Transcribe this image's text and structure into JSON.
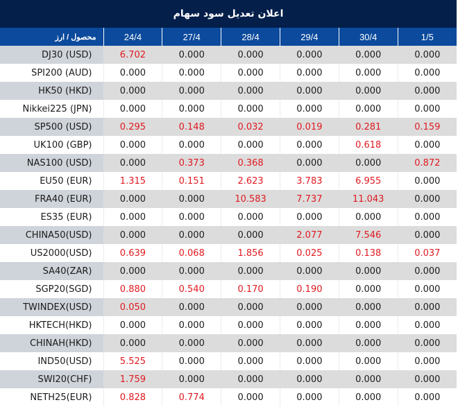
{
  "title": "اعلان تعدیل سود سهام",
  "columns": [
    "محصول / ارز",
    "24/4",
    "27/4",
    "28/4",
    "29/4",
    "30/4",
    "1/5"
  ],
  "colors": {
    "title_bg": "#031f4a",
    "header_bg": "#0b4a9c",
    "positive": "#e0191f",
    "zero": "#1a1a1a",
    "alt_row": "#dcdcdc",
    "alt_first_col": "#cfd4da"
  },
  "rows": [
    {
      "product": "DJ30 (USD)",
      "values": [
        "6.702",
        "0.000",
        "0.000",
        "0.000",
        "0.000",
        "0.000"
      ]
    },
    {
      "product": "SPI200 (AUD)",
      "values": [
        "0.000",
        "0.000",
        "0.000",
        "0.000",
        "0.000",
        "0.000"
      ]
    },
    {
      "product": "HK50 (HKD)",
      "values": [
        "0.000",
        "0.000",
        "0.000",
        "0.000",
        "0.000",
        "0.000"
      ]
    },
    {
      "product": "Nikkei225 (JPN)",
      "values": [
        "0.000",
        "0.000",
        "0.000",
        "0.000",
        "0.000",
        "0.000"
      ]
    },
    {
      "product": "SP500 (USD)",
      "values": [
        "0.295",
        "0.148",
        "0.032",
        "0.019",
        "0.281",
        "0.159"
      ]
    },
    {
      "product": "UK100 (GBP)",
      "values": [
        "0.000",
        "0.000",
        "0.000",
        "0.000",
        "0.618",
        "0.000"
      ]
    },
    {
      "product": "NAS100 (USD)",
      "values": [
        "0.000",
        "0.373",
        "0.368",
        "0.000",
        "0.000",
        "0.872"
      ]
    },
    {
      "product": "EU50 (EUR)",
      "values": [
        "1.315",
        "0.151",
        "2.623",
        "3.783",
        "6.955",
        "0.000"
      ]
    },
    {
      "product": "FRA40 (EUR)",
      "values": [
        "0.000",
        "0.000",
        "10.583",
        "7.737",
        "11.043",
        "0.000"
      ]
    },
    {
      "product": "ES35 (EUR)",
      "values": [
        "0.000",
        "0.000",
        "0.000",
        "0.000",
        "0.000",
        "0.000"
      ]
    },
    {
      "product": "CHINA50(USD)",
      "values": [
        "0.000",
        "0.000",
        "0.000",
        "2.077",
        "7.546",
        "0.000"
      ]
    },
    {
      "product": "US2000(USD)",
      "values": [
        "0.639",
        "0.068",
        "1.856",
        "0.025",
        "0.138",
        "0.037"
      ]
    },
    {
      "product": "SA40(ZAR)",
      "values": [
        "0.000",
        "0.000",
        "0.000",
        "0.000",
        "0.000",
        "0.000"
      ]
    },
    {
      "product": "SGP20(SGD)",
      "values": [
        "0.880",
        "0.540",
        "0.170",
        "0.190",
        "0.000",
        "0.000"
      ]
    },
    {
      "product": "TWINDEX(USD)",
      "values": [
        "0.050",
        "0.000",
        "0.000",
        "0.000",
        "0.000",
        "0.000"
      ]
    },
    {
      "product": "HKTECH(HKD)",
      "values": [
        "0.000",
        "0.000",
        "0.000",
        "0.000",
        "0.000",
        "0.000"
      ]
    },
    {
      "product": "CHINAH(HKD)",
      "values": [
        "0.000",
        "0.000",
        "0.000",
        "0.000",
        "0.000",
        "0.000"
      ]
    },
    {
      "product": "IND50(USD)",
      "values": [
        "5.525",
        "0.000",
        "0.000",
        "0.000",
        "0.000",
        "0.000"
      ]
    },
    {
      "product": "SWI20(CHF)",
      "values": [
        "1.759",
        "0.000",
        "0.000",
        "0.000",
        "0.000",
        "0.000"
      ]
    },
    {
      "product": "NETH25(EUR)",
      "values": [
        "0.828",
        "0.774",
        "0.000",
        "0.000",
        "0.000",
        "0.000"
      ]
    }
  ]
}
